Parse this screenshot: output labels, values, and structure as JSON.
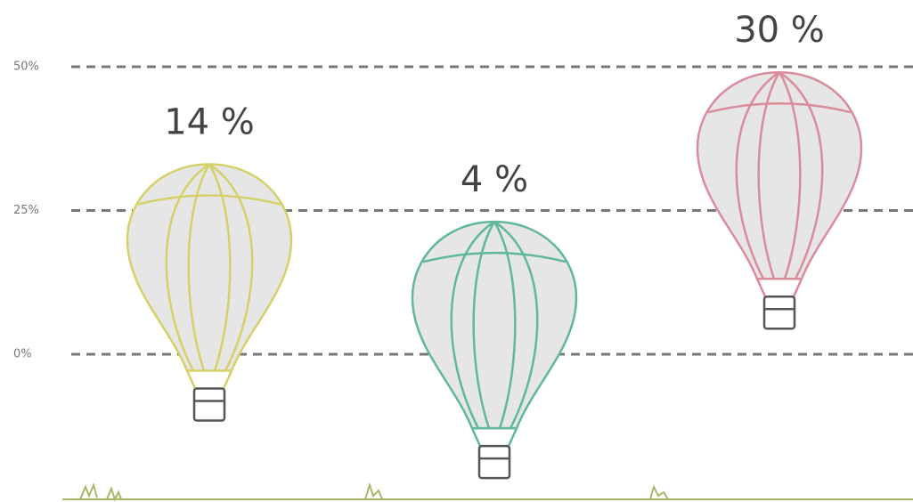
{
  "chart_data": {
    "type": "balloon",
    "categories": [
      null,
      null,
      null
    ],
    "values": [
      14,
      4,
      30
    ],
    "value_labels": [
      "14 %",
      "4 %",
      "30 %"
    ],
    "colors": [
      "#d6d06a",
      "#5fb898",
      "#d98c9c"
    ],
    "ylim": [
      0,
      50
    ],
    "yticks": [
      {
        "value": 0,
        "label": "0%"
      },
      {
        "value": 25,
        "label": "25%"
      },
      {
        "value": 50,
        "label": "50%"
      }
    ],
    "grid": true
  }
}
